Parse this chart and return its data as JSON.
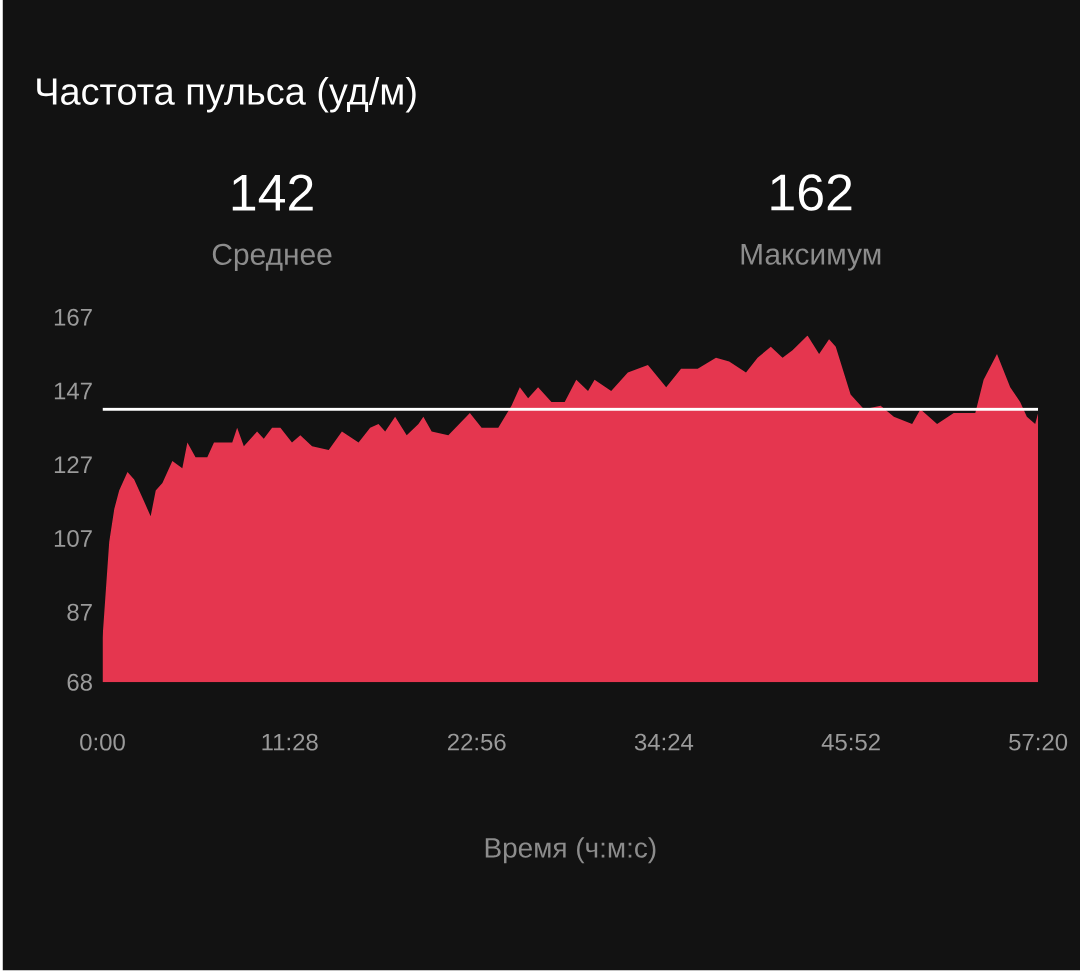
{
  "chart_data": {
    "type": "area",
    "title": "Частота пульса (уд/м)",
    "xlabel": "Время (ч:м:с)",
    "annotations": [
      "142",
      "Среднее",
      "162",
      "Максимум"
    ],
    "x": [
      0,
      0.41,
      0.72,
      1.02,
      1.53,
      1.94,
      2.55,
      2.95,
      3.26,
      3.67,
      4.28,
      4.89,
      5.2,
      5.7,
      6.42,
      6.83,
      7.95,
      8.25,
      8.66,
      9.47,
      9.88,
      10.39,
      10.9,
      11.61,
      12.12,
      12.84,
      13.86,
      14.67,
      15.69,
      16.4,
      16.91,
      17.32,
      17.93,
      18.64,
      19.36,
      19.66,
      20.17,
      21.19,
      22.51,
      23.23,
      24.25,
      25.06,
      25.57,
      26.08,
      26.69,
      27.51,
      28.32,
      29.03,
      29.75,
      30.15,
      31.17,
      32.19,
      33.42,
      34.54,
      35.45,
      36.47,
      37.59,
      38.4,
      39.43,
      40.14,
      40.95,
      41.67,
      42.28,
      43.2,
      43.91,
      44.52,
      44.93,
      45.84,
      46.66,
      47.68,
      48.49,
      49.61,
      50.12,
      51.14,
      52.16,
      53.48,
      53.99,
      54.81,
      55.62,
      56.23,
      56.64,
      57.15,
      57.33
    ],
    "values": [
      80,
      106,
      115,
      120,
      125,
      123,
      117,
      113,
      120,
      122,
      128,
      126,
      133,
      129,
      129,
      133,
      133,
      137,
      132,
      136,
      134,
      137,
      137,
      133,
      135,
      132,
      131,
      136,
      133,
      137,
      138,
      136,
      140,
      135,
      138,
      140,
      136,
      135,
      141,
      137,
      137,
      143,
      148,
      145,
      148,
      144,
      144,
      150,
      147,
      150,
      147,
      152,
      154,
      148,
      153,
      153,
      156,
      155,
      152,
      156,
      159,
      156,
      158,
      162,
      157,
      161,
      159,
      146,
      142,
      143,
      140,
      138,
      142,
      138,
      141,
      141,
      150,
      157,
      148,
      144,
      140,
      138,
      141
    ],
    "color": "#e5364f",
    "xlim": [
      0,
      57.33
    ],
    "xticks": [
      {
        "value": 0,
        "label": "0:00"
      },
      {
        "value": 11.47,
        "label": "11:28"
      },
      {
        "value": 22.93,
        "label": "22:56"
      },
      {
        "value": 34.4,
        "label": "34:24"
      },
      {
        "value": 45.87,
        "label": "45:52"
      },
      {
        "value": 57.33,
        "label": "57:20"
      }
    ],
    "ylim": [
      68,
      167
    ],
    "yticks": [
      68,
      87,
      107,
      127,
      147,
      167
    ],
    "ref_lines": [
      {
        "axis": "y",
        "value": 142,
        "color": "#ffffff"
      }
    ]
  }
}
